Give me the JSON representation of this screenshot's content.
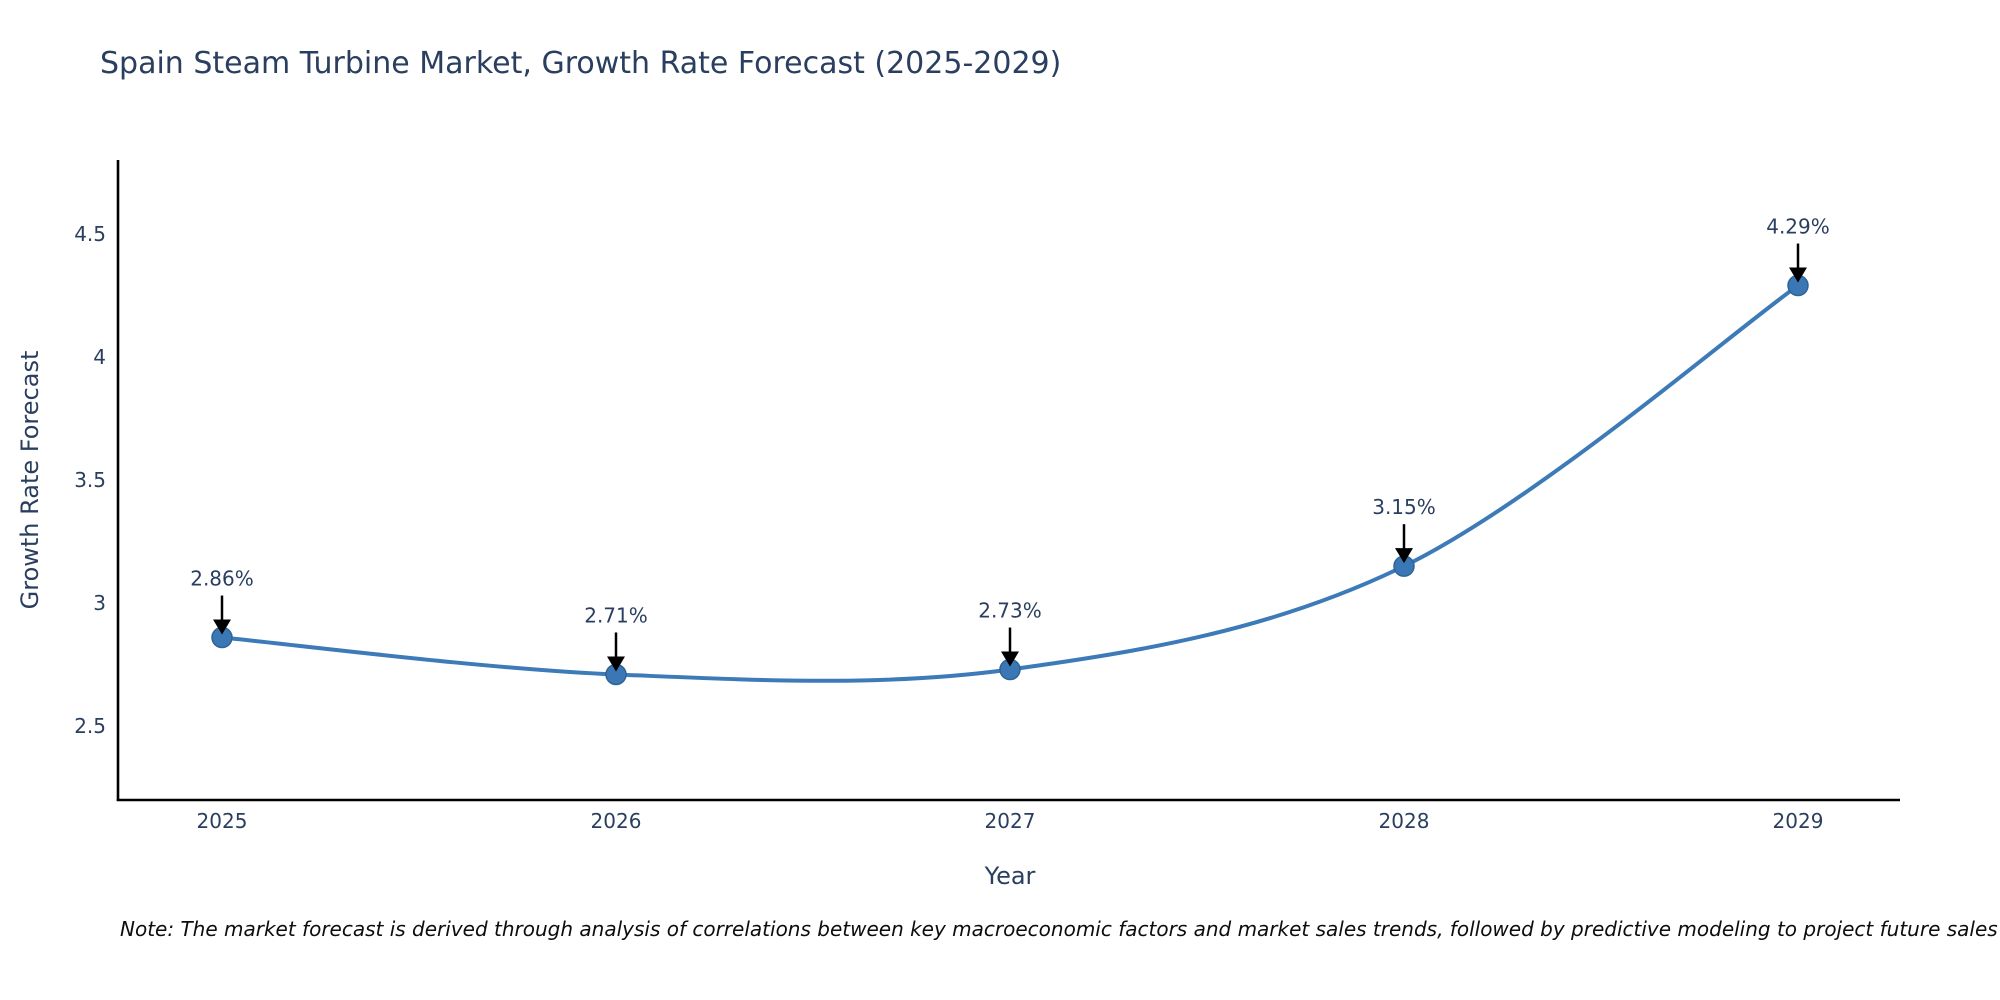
{
  "title": "Spain Steam Turbine Market, Growth Rate Forecast (2025-2029)",
  "note": "Note: The market forecast is derived through analysis of correlations between key macroeconomic factors and market sales trends, followed by predictive modeling to project future sales",
  "chart_data": {
    "type": "line",
    "line_shape": "spline",
    "title": "Spain Steam Turbine Market, Growth Rate Forecast (2025-2029)",
    "xlabel": "Year",
    "ylabel": "Growth Rate Forecast",
    "categories": [
      "2025",
      "2026",
      "2027",
      "2028",
      "2029"
    ],
    "values": [
      2.86,
      2.71,
      2.73,
      3.15,
      4.29
    ],
    "point_labels": [
      "2.86%",
      "2.71%",
      "2.73%",
      "3.15%",
      "4.29%"
    ],
    "ytick_labels": [
      "2.5",
      "3",
      "3.5",
      "4",
      "4.5"
    ],
    "yticks": [
      2.5,
      3,
      3.5,
      4,
      4.5
    ],
    "ylim": [
      2.2,
      4.8
    ],
    "grid": false,
    "legend": false,
    "annotations_have_arrows": true,
    "colors": {
      "line": "#3d7ab8",
      "marker_fill": "#3a77b4",
      "marker_stroke": "#2f6496",
      "axis_line": "#000000",
      "text": "#2a3f5f",
      "arrow": "#000000"
    }
  }
}
